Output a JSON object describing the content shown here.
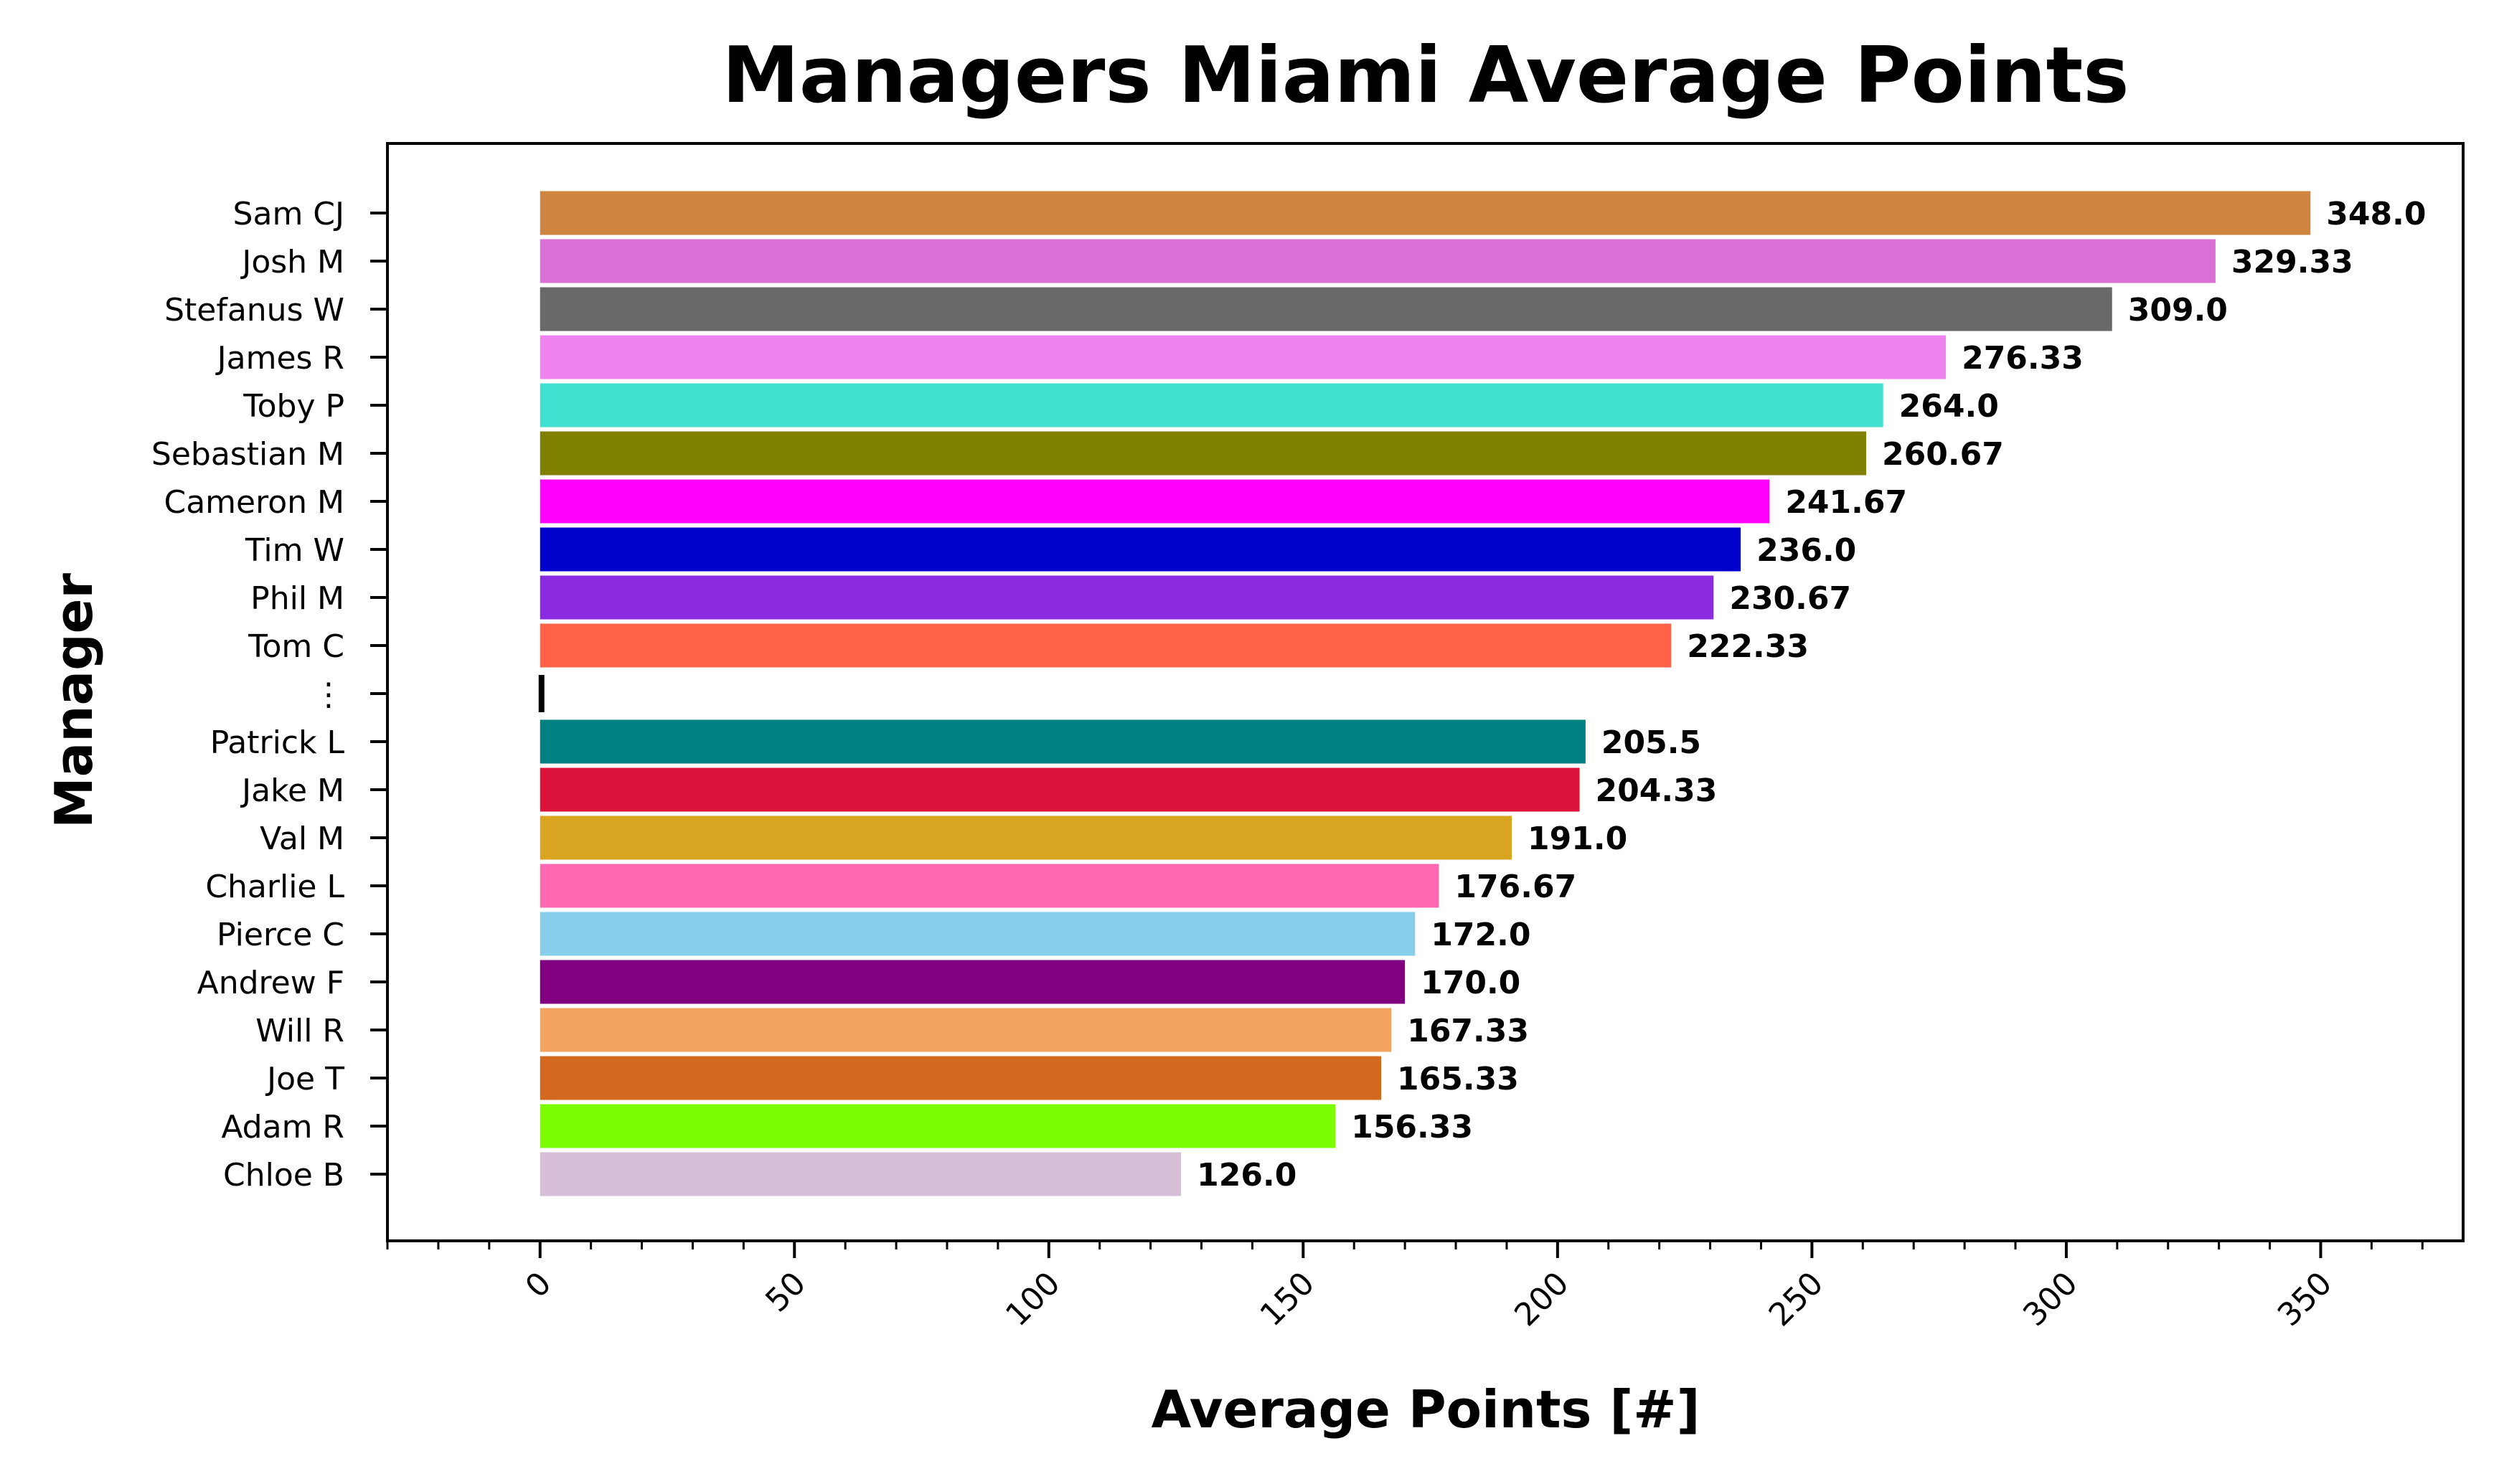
{
  "chart_data": {
    "type": "bar",
    "orientation": "horizontal",
    "title": "Managers Miami Average Points",
    "xlabel": "Average Points [#]",
    "ylabel": "Manager",
    "xlim": [
      -30,
      378
    ],
    "xticks": [
      0,
      50,
      100,
      150,
      200,
      250,
      300,
      350
    ],
    "minor_tick_step": 10,
    "grid": false,
    "legend": "none",
    "categories": [
      "Sam CJ",
      "Josh M",
      "Stefanus W",
      "James R",
      "Toby P",
      "Sebastian M",
      "Cameron M",
      "Tim W",
      "Phil M",
      "Tom C",
      "⋮",
      "Patrick L",
      "Jake M",
      "Val M",
      "Charlie L",
      "Pierce C",
      "Andrew F",
      "Will R",
      "Joe T",
      "Adam R",
      "Chloe B"
    ],
    "values": [
      348.0,
      329.33,
      309.0,
      276.33,
      264.0,
      260.67,
      241.67,
      236.0,
      230.67,
      222.33,
      0,
      205.5,
      204.33,
      191.0,
      176.67,
      172.0,
      170.0,
      167.33,
      165.33,
      156.33,
      126.0
    ],
    "value_labels": [
      "348.0",
      "329.33",
      "309.0",
      "276.33",
      "264.0",
      "260.67",
      "241.67",
      "236.0",
      "230.67",
      "222.33",
      "",
      "205.5",
      "204.33",
      "191.0",
      "176.67",
      "172.0",
      "170.0",
      "167.33",
      "165.33",
      "156.33",
      "126.0"
    ],
    "colors": [
      "#CD853F",
      "#DA70D6",
      "#696969",
      "#EE82EE",
      "#40E0D0",
      "#808000",
      "#FF00FF",
      "#0000CD",
      "#8A2BE2",
      "#FF6347",
      "#000000",
      "#008080",
      "#DC143C",
      "#DAA520",
      "#FF69B4",
      "#87CEEB",
      "#800080",
      "#F4A460",
      "#D2691E",
      "#7CFC00",
      "#D8BFD8"
    ]
  }
}
